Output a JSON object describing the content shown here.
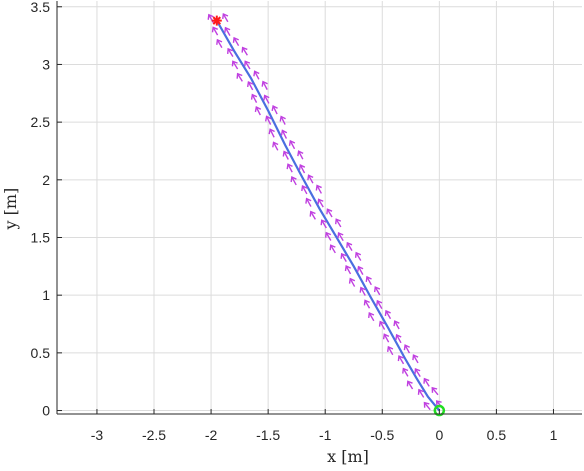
{
  "chart_data": {
    "type": "line",
    "xlabel": "x [m]",
    "ylabel": "y [m]",
    "xlim": [
      -3.35,
      1.25
    ],
    "ylim": [
      -0.03,
      3.55
    ],
    "grid": true,
    "x_ticks": [
      -3,
      -2.5,
      -2,
      -1.5,
      -1,
      -0.5,
      0,
      0.5,
      1
    ],
    "x_tick_labels": [
      "-3",
      "-2.5",
      "-2",
      "-1.5",
      "-1",
      "-0.5",
      "0",
      "0.5",
      "1"
    ],
    "y_ticks": [
      0,
      0.5,
      1,
      1.5,
      2,
      2.5,
      3,
      3.5
    ],
    "y_tick_labels": [
      "0",
      "0.5",
      "1",
      "1.5",
      "2",
      "2.5",
      "3",
      "3.5"
    ],
    "series": [
      {
        "style": "line",
        "color": "#4a6fe0",
        "x": [
          0.0,
          -0.1,
          -0.2,
          -0.3,
          -0.45,
          -0.6,
          -0.75,
          -0.9,
          -1.05,
          -1.2,
          -1.35,
          -1.5,
          -1.65,
          -1.8,
          -1.95
        ],
        "y": [
          0.0,
          0.12,
          0.28,
          0.45,
          0.72,
          0.98,
          1.25,
          1.5,
          1.75,
          2.02,
          2.3,
          2.6,
          2.88,
          3.12,
          3.38
        ]
      },
      {
        "style": "field-arrows",
        "color": "#c040e0",
        "x": [
          0.0,
          -0.1,
          -0.2,
          -0.3,
          -0.45,
          -0.6,
          -0.75,
          -0.9,
          -1.05,
          -1.2,
          -1.35,
          -1.5,
          -1.65,
          -1.8,
          -1.95
        ],
        "y": [
          0.0,
          0.12,
          0.28,
          0.45,
          0.72,
          0.98,
          1.25,
          1.5,
          1.75,
          2.02,
          2.3,
          2.6,
          2.88,
          3.12,
          3.38
        ]
      }
    ],
    "markers": [
      {
        "type": "start",
        "shape": "circle",
        "x": 0.0,
        "y": 0.0,
        "color": "#22dd22"
      },
      {
        "type": "goal",
        "shape": "star",
        "x": -1.95,
        "y": 3.38,
        "color": "#ff1a1a"
      }
    ],
    "colors": {
      "axis": "#262626",
      "grid": "#dcdcdc",
      "background": "#ffffff"
    }
  }
}
